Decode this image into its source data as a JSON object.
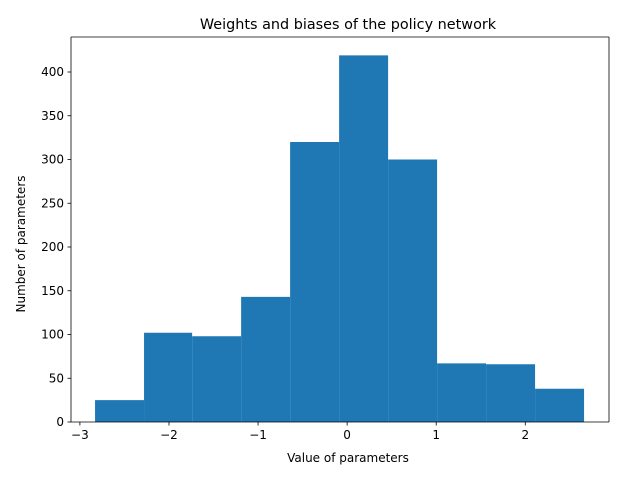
{
  "chart_data": {
    "type": "bar",
    "title": "Weights and biases of the policy network",
    "xlabel": "Value of parameters",
    "ylabel": "Number of parameters",
    "bin_edges": [
      -2.83,
      -2.28,
      -1.74,
      -1.19,
      -0.64,
      -0.09,
      0.46,
      1.01,
      1.56,
      2.11,
      2.66
    ],
    "values": [
      25,
      102,
      98,
      143,
      320,
      419,
      300,
      67,
      66,
      38
    ],
    "xlim": [
      -3.1,
      2.94
    ],
    "ylim": [
      0,
      440
    ],
    "xticks": [
      -3,
      -2,
      -1,
      0,
      1,
      2
    ],
    "xtick_labels": [
      "−3",
      "−2",
      "−1",
      "0",
      "1",
      "2"
    ],
    "yticks": [
      0,
      50,
      100,
      150,
      200,
      250,
      300,
      350,
      400
    ],
    "ytick_labels": [
      "0",
      "50",
      "100",
      "150",
      "200",
      "250",
      "300",
      "350",
      "400"
    ],
    "bar_color": "#1f77b4",
    "grid": false,
    "legend": "none"
  }
}
